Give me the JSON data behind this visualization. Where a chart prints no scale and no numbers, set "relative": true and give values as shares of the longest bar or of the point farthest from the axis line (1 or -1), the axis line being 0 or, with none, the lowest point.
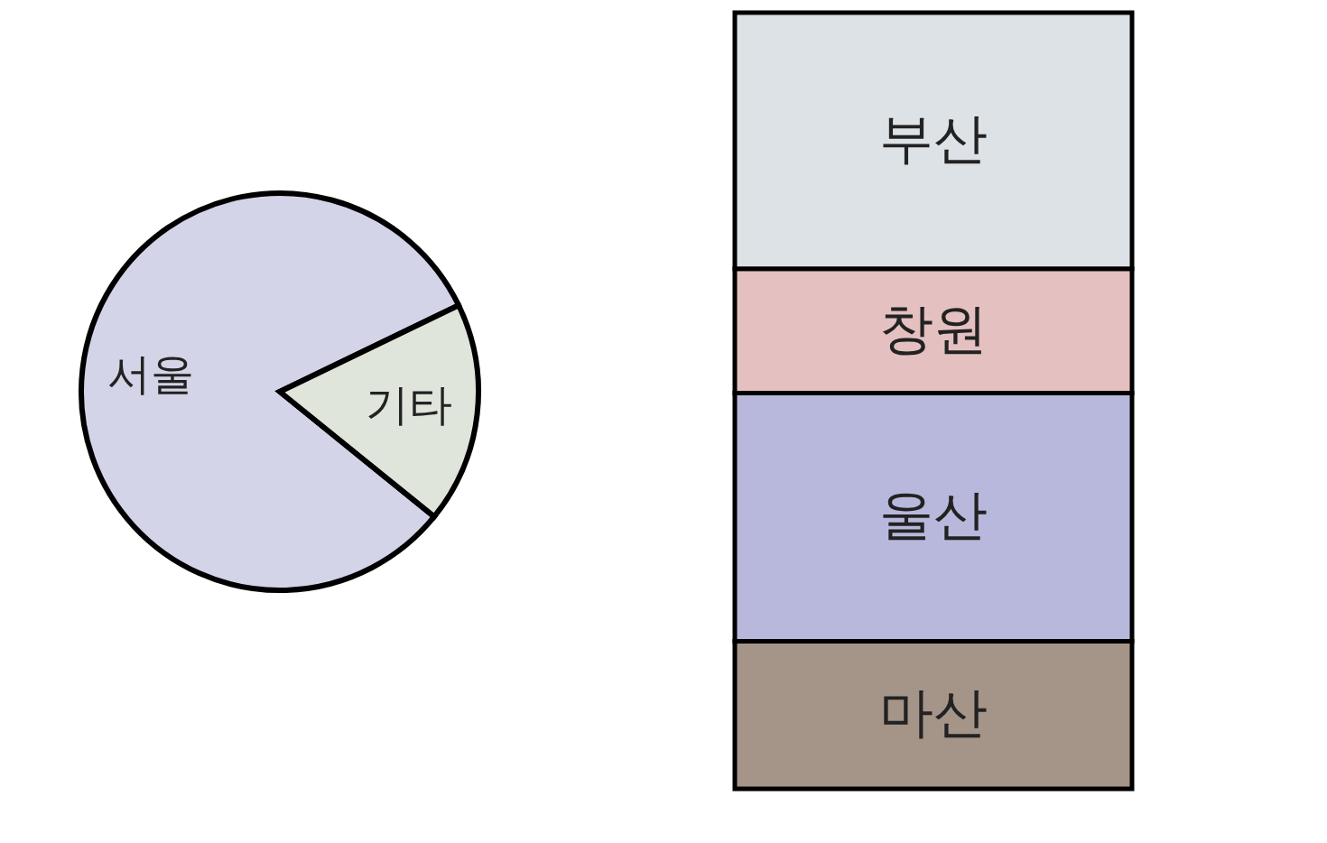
{
  "chart_data": [
    {
      "type": "pie",
      "categories": [
        "서울",
        "기타"
      ],
      "values": [
        82,
        18
      ],
      "colors": [
        "#d4d4e8",
        "#dfe5da"
      ]
    },
    {
      "type": "bar",
      "stacked": true,
      "relative": true,
      "categories": [
        null
      ],
      "series": [
        {
          "name": "마산",
          "color": "#a59488",
          "values": [
            0.19
          ]
        },
        {
          "name": "울산",
          "color": "#b8b8dc",
          "values": [
            0.32
          ]
        },
        {
          "name": "창원",
          "color": "#e4c0c0",
          "values": [
            0.16
          ]
        },
        {
          "name": "부산",
          "color": "#dde2e6",
          "values": [
            0.33
          ]
        }
      ]
    }
  ]
}
